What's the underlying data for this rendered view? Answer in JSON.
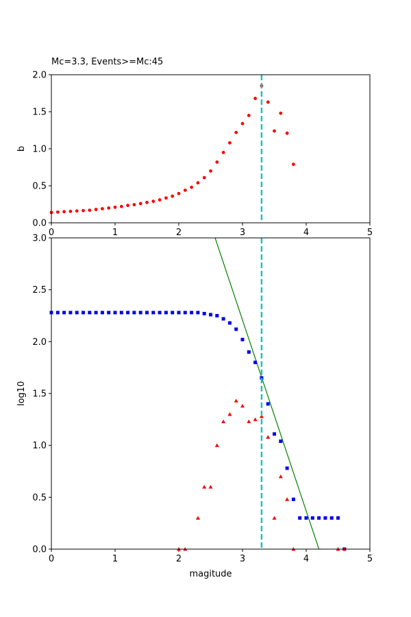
{
  "chart_data": [
    {
      "type": "scatter",
      "title": "Mc=3.3, Events>=Mc:45",
      "xlabel": "",
      "ylabel": "b",
      "xlim": [
        0,
        5
      ],
      "ylim": [
        0,
        2.0
      ],
      "xticks": [
        "0",
        "1",
        "2",
        "3",
        "4",
        "5"
      ],
      "yticks": [
        "0.0",
        "0.5",
        "1.0",
        "1.5",
        "2.0"
      ],
      "mc_line": {
        "x": 3.3,
        "color": "#1fbfbf"
      },
      "series": [
        {
          "marker": "circle",
          "color": "#ff0000",
          "x": [
            0.0,
            0.1,
            0.2,
            0.3,
            0.4,
            0.5,
            0.6,
            0.7,
            0.8,
            0.9,
            1.0,
            1.1,
            1.2,
            1.3,
            1.4,
            1.5,
            1.6,
            1.7,
            1.8,
            1.9,
            2.0,
            2.1,
            2.2,
            2.3,
            2.4,
            2.5,
            2.6,
            2.7,
            2.8,
            2.9,
            3.0,
            3.1,
            3.2,
            3.3,
            3.4,
            3.5,
            3.6,
            3.7,
            3.8
          ],
          "y": [
            0.14,
            0.145,
            0.15,
            0.155,
            0.16,
            0.165,
            0.17,
            0.18,
            0.19,
            0.2,
            0.21,
            0.22,
            0.235,
            0.245,
            0.26,
            0.275,
            0.29,
            0.31,
            0.335,
            0.36,
            0.395,
            0.44,
            0.48,
            0.54,
            0.61,
            0.7,
            0.82,
            0.95,
            1.08,
            1.22,
            1.34,
            1.45,
            1.68,
            1.85,
            1.63,
            1.24,
            1.48,
            1.21,
            0.79
          ]
        }
      ]
    },
    {
      "type": "scatter",
      "title": "",
      "xlabel": "magitude",
      "ylabel": "log10",
      "xlim": [
        0,
        5
      ],
      "ylim": [
        0,
        3.0
      ],
      "xticks": [
        "0",
        "1",
        "2",
        "3",
        "4",
        "5"
      ],
      "yticks": [
        "0.0",
        "0.5",
        "1.0",
        "1.5",
        "2.0",
        "2.5",
        "3.0"
      ],
      "mc_line": {
        "x": 3.3,
        "color": "#1fbfbf"
      },
      "fit_line": {
        "x": [
          2.57,
          4.2
        ],
        "y": [
          3.0,
          0.0
        ],
        "color": "#008000"
      },
      "series": [
        {
          "marker": "square",
          "color": "#0000ee",
          "x": [
            0.0,
            0.1,
            0.2,
            0.3,
            0.4,
            0.5,
            0.6,
            0.7,
            0.8,
            0.9,
            1.0,
            1.1,
            1.2,
            1.3,
            1.4,
            1.5,
            1.6,
            1.7,
            1.8,
            1.9,
            2.0,
            2.1,
            2.2,
            2.3,
            2.4,
            2.5,
            2.6,
            2.7,
            2.8,
            2.9,
            3.0,
            3.1,
            3.2,
            3.3,
            3.4,
            3.5,
            3.6,
            3.7,
            3.8,
            3.9,
            4.0,
            4.1,
            4.2,
            4.3,
            4.4,
            4.5,
            4.6
          ],
          "y": [
            2.28,
            2.28,
            2.28,
            2.28,
            2.28,
            2.28,
            2.28,
            2.28,
            2.28,
            2.28,
            2.28,
            2.28,
            2.28,
            2.28,
            2.28,
            2.28,
            2.28,
            2.28,
            2.28,
            2.28,
            2.28,
            2.28,
            2.28,
            2.28,
            2.27,
            2.26,
            2.25,
            2.22,
            2.18,
            2.12,
            2.02,
            1.9,
            1.8,
            1.65,
            1.4,
            1.11,
            1.04,
            0.78,
            0.48,
            0.3,
            0.3,
            0.3,
            0.3,
            0.3,
            0.3,
            0.3,
            0.0
          ]
        },
        {
          "marker": "triangle",
          "color": "#ff0000",
          "x": [
            2.0,
            2.1,
            2.3,
            2.4,
            2.5,
            2.6,
            2.7,
            2.8,
            2.9,
            3.0,
            3.1,
            3.2,
            3.3,
            3.4,
            3.5,
            3.6,
            3.7,
            3.8,
            4.5,
            4.6
          ],
          "y": [
            0.0,
            0.0,
            0.3,
            0.6,
            0.6,
            1.0,
            1.23,
            1.3,
            1.43,
            1.38,
            1.23,
            1.25,
            1.28,
            1.08,
            0.3,
            0.7,
            0.48,
            0.0,
            0.0,
            0.0
          ]
        }
      ]
    }
  ]
}
